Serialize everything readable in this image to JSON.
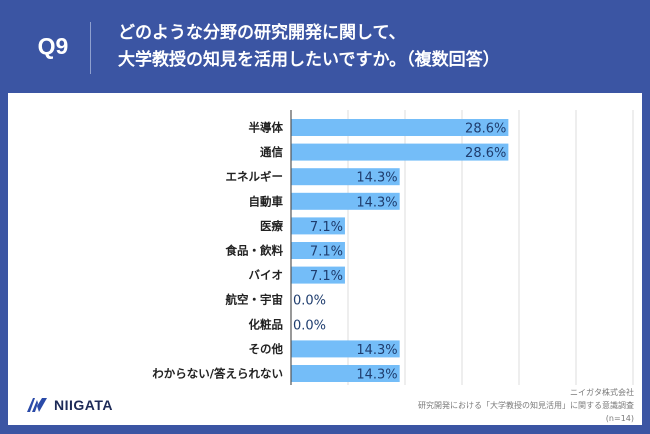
{
  "header": {
    "question_number": "Q9",
    "title_line1": "どのような分野の研究開発に関して、",
    "title_line2": "大学教授の知見を活用したいですか。（複数回答）"
  },
  "colors": {
    "background": "#3b55a3",
    "bar": "#74bdf8",
    "value_label": "#1f3d6e",
    "gridline": "#dddddd",
    "axis": "#555555"
  },
  "footer": {
    "logo_text": "NIIGATA",
    "source_line1": "ニイガタ株式会社",
    "source_line2": "研究開発における「大学教授の知見活用」に関する意識調査",
    "source_line3": "(n=14)"
  },
  "chart_data": {
    "type": "bar",
    "orientation": "horizontal",
    "title": "どのような分野の研究開発に関して、大学教授の知見を活用したいですか。（複数回答）",
    "categories": [
      "半導体",
      "通信",
      "エネルギー",
      "自動車",
      "医療",
      "食品・飲料",
      "バイオ",
      "航空・宇宙",
      "化粧品",
      "その他",
      "わからない/答えられない"
    ],
    "values": [
      28.6,
      28.6,
      14.3,
      14.3,
      7.1,
      7.1,
      7.1,
      0.0,
      0.0,
      14.3,
      14.3
    ],
    "value_labels": [
      "28.6%",
      "28.6%",
      "14.3%",
      "14.3%",
      "7.1%",
      "7.1%",
      "7.1%",
      "0.0%",
      "0.0%",
      "14.3%",
      "14.3%"
    ],
    "unit": "%",
    "xlabel": "",
    "ylabel": "",
    "xlim": [
      0,
      45
    ],
    "gridlines": [
      7.5,
      15,
      22.5,
      30,
      37.5,
      45
    ],
    "grid": true,
    "legend": "none"
  }
}
